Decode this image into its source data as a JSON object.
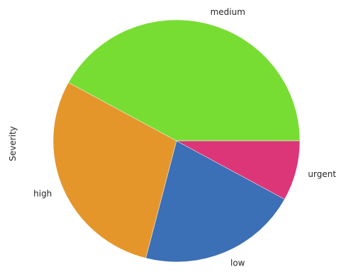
{
  "chart_data": {
    "type": "pie",
    "ylabel": "Severity",
    "categories": [
      "medium",
      "high",
      "low",
      "urgent"
    ],
    "values": [
      42,
      29,
      21,
      8
    ],
    "colors": [
      "#77dd33",
      "#e4962b",
      "#3b6fb6",
      "#dc3679"
    ]
  }
}
